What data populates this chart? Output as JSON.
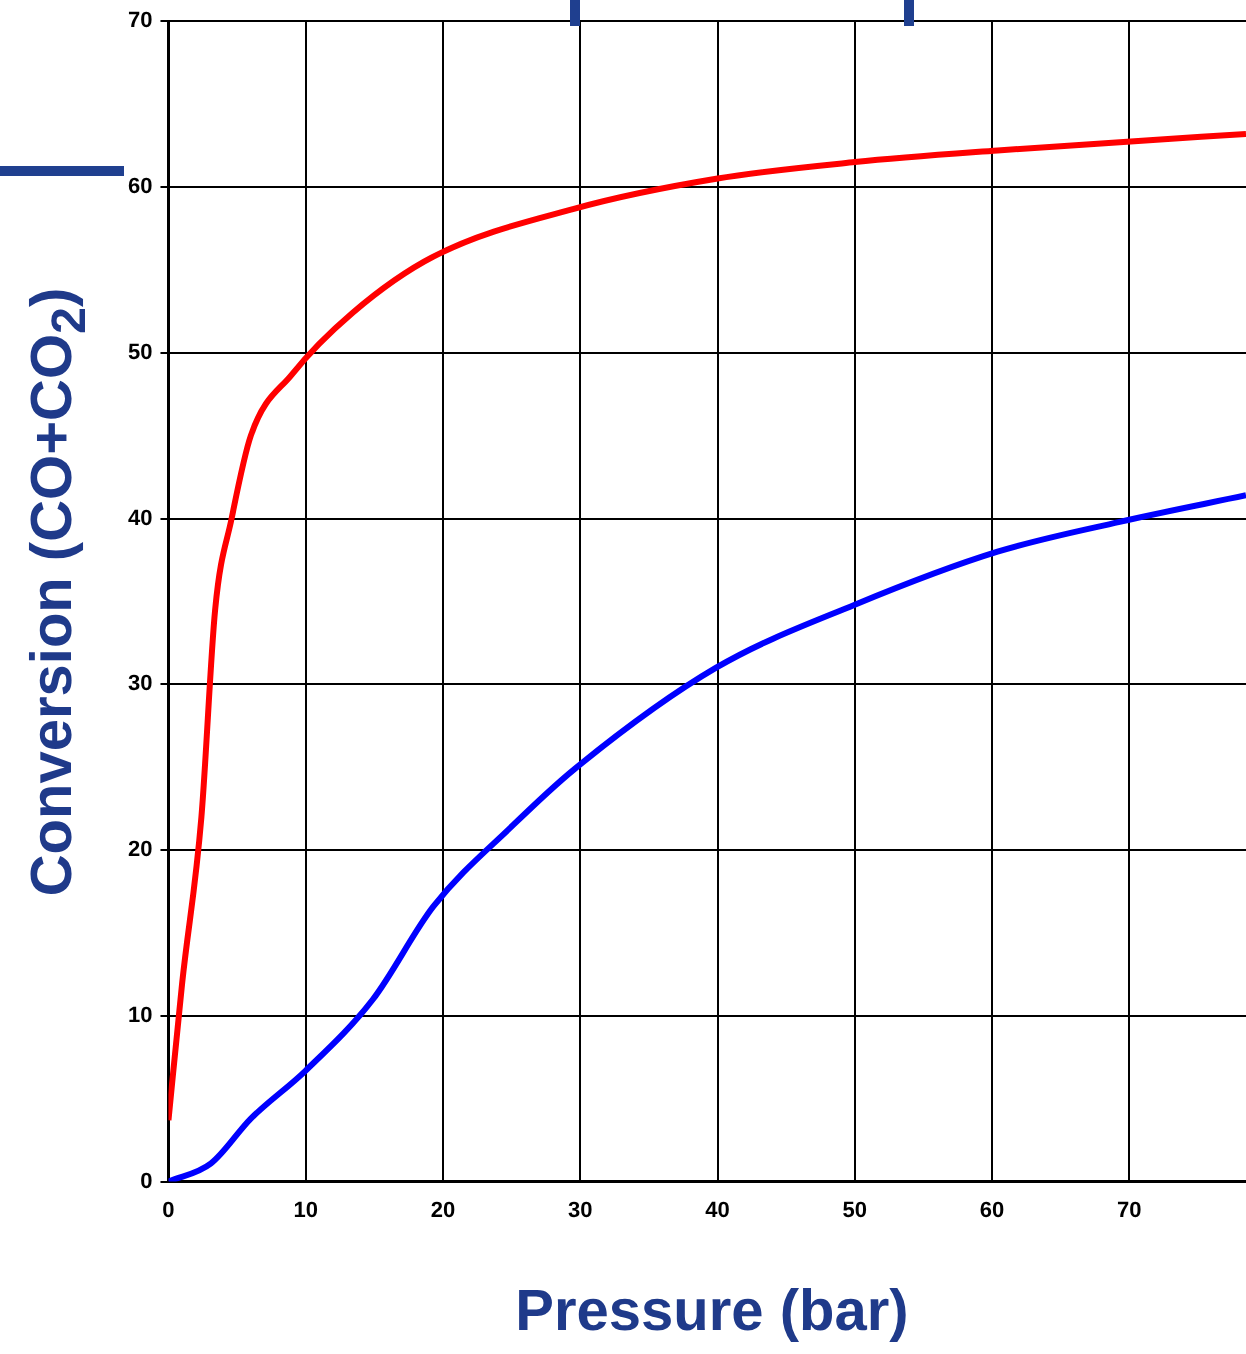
{
  "chart_data": {
    "type": "line",
    "xlabel": "Pressure (bar)",
    "ylabel": "Conversion (CO+CO$_{2}$)",
    "xlim": [
      0,
      78.5
    ],
    "xticks": [
      0,
      10,
      20,
      30,
      40,
      50,
      60,
      70
    ],
    "ylim": [
      0,
      70
    ],
    "yticks": [
      0,
      10,
      20,
      30,
      40,
      50,
      60,
      70
    ],
    "grid": true,
    "legend": false,
    "marker": "none",
    "line_style": "solid",
    "series": [
      {
        "color": "#ff0000",
        "x": [
          0,
          1,
          2.4,
          3.4,
          4.6,
          6,
          9,
          13.4,
          19.3,
          29.6,
          39.9,
          50,
          60.4,
          69.3,
          78.5
        ],
        "values": [
          3.7,
          12,
          22,
          34.5,
          40,
          45,
          48.7,
          52.4,
          55.8,
          58.7,
          60.5,
          61.5,
          62.2,
          62.7,
          63.2
        ]
      },
      {
        "color": "#0000ff",
        "x": [
          0,
          3.1,
          6,
          10,
          14.9,
          19.3,
          25.1,
          29.6,
          39.9,
          50,
          60.4,
          69.3,
          78.5
        ],
        "values": [
          0,
          1.1,
          3.8,
          6.7,
          11,
          16.6,
          21.5,
          24.9,
          31,
          34.8,
          38,
          39.8,
          41.4
        ]
      }
    ]
  }
}
